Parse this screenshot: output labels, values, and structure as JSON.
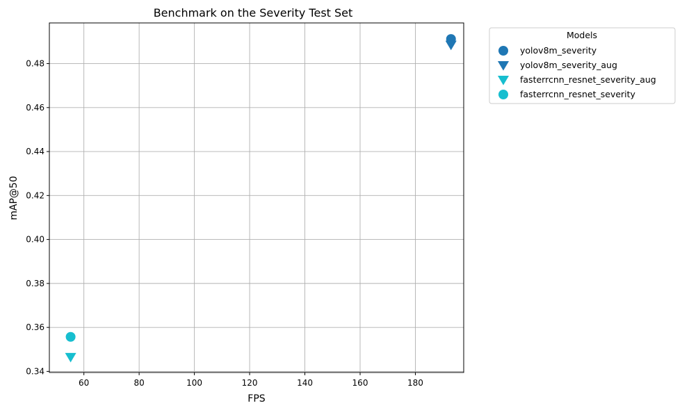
{
  "chart_data": {
    "type": "scatter",
    "title": "Benchmark on the Severity Test Set",
    "xlabel": "FPS",
    "ylabel": "mAP@50",
    "xlim": [
      47.5,
      197.5
    ],
    "ylim": [
      0.3395,
      0.4985
    ],
    "xticks": [
      60,
      80,
      100,
      120,
      140,
      160,
      180
    ],
    "yticks": [
      0.34,
      0.36,
      0.38,
      0.4,
      0.42,
      0.44,
      0.46,
      0.48
    ],
    "ytick_labels": [
      "0.34",
      "0.36",
      "0.38",
      "0.40",
      "0.42",
      "0.44",
      "0.46",
      "0.48"
    ],
    "grid": true,
    "legend": {
      "title": "Models",
      "placement": "outside-upper-right"
    },
    "series": [
      {
        "name": "yolov8m_severity",
        "marker": "circle",
        "color": "#1f77b4",
        "x": [
          192.9
        ],
        "y": [
          0.4912
        ]
      },
      {
        "name": "yolov8m_severity_aug",
        "marker": "triangle-down",
        "color": "#1f77b4",
        "x": [
          192.9
        ],
        "y": [
          0.4885
        ]
      },
      {
        "name": "fasterrcnn_resnet_severity_aug",
        "marker": "triangle-down",
        "color": "#17becf",
        "x": [
          55.2
        ],
        "y": [
          0.3465
        ]
      },
      {
        "name": "fasterrcnn_resnet_severity",
        "marker": "circle",
        "color": "#17becf",
        "x": [
          55.2
        ],
        "y": [
          0.3557
        ]
      }
    ]
  }
}
